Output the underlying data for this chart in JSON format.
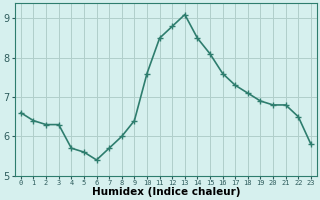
{
  "title": "",
  "xlabel": "Humidex (Indice chaleur)",
  "ylabel": "",
  "x": [
    0,
    1,
    2,
    3,
    4,
    5,
    6,
    7,
    8,
    9,
    10,
    11,
    12,
    13,
    14,
    15,
    16,
    17,
    18,
    19,
    20,
    21,
    22,
    23
  ],
  "y": [
    6.6,
    6.4,
    6.3,
    6.3,
    5.7,
    5.6,
    5.4,
    5.7,
    6.0,
    6.4,
    7.6,
    8.5,
    8.8,
    9.1,
    8.5,
    8.1,
    7.6,
    7.3,
    7.1,
    6.9,
    6.8,
    6.8,
    6.5,
    5.8
  ],
  "line_color": "#2e7d6e",
  "marker": "+",
  "marker_size": 4,
  "bg_color": "#d6f0ee",
  "grid_color": "#b0ceca",
  "tick_label_color": "#2e5c5c",
  "xlabel_color": "#000000",
  "ylim": [
    5,
    9.4
  ],
  "yticks": [
    5,
    6,
    7,
    8,
    9
  ],
  "xlim": [
    -0.5,
    23.5
  ],
  "xticks": [
    0,
    1,
    2,
    3,
    4,
    5,
    6,
    7,
    8,
    9,
    10,
    11,
    12,
    13,
    14,
    15,
    16,
    17,
    18,
    19,
    20,
    21,
    22,
    23
  ],
  "linewidth": 1.2,
  "spine_color": "#2e7d6e"
}
